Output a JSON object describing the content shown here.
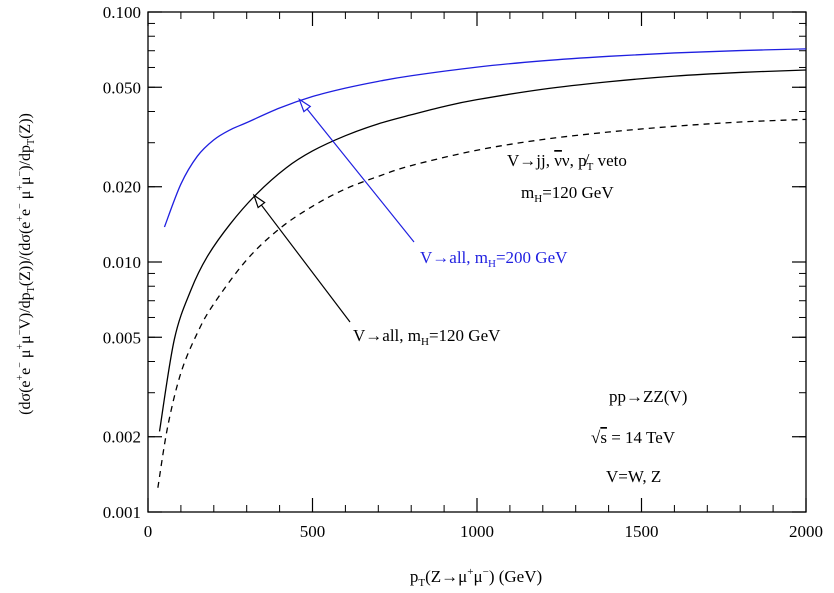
{
  "chart_data": {
    "type": "line",
    "xlabel": "p_T(Z→μ⁺μ⁻) (GeV)",
    "ylabel": "(dσ(e⁺e⁻μ⁺μ⁻V)/dp_T(Z))/(dσ(e⁺e⁻μ⁺μ⁻)/dp_T(Z))",
    "xlim": [
      0,
      2000
    ],
    "ylim": [
      0.001,
      0.1
    ],
    "yscale": "log",
    "grid": false,
    "x_ticks": [
      "0",
      "500",
      "1000",
      "1500",
      "2000"
    ],
    "y_ticks": [
      "0.001",
      "0.002",
      "0.005",
      "0.010",
      "0.020",
      "0.050",
      "0.100"
    ],
    "series": [
      {
        "name": "V→all, m_H=200 GeV",
        "color": "#1f1fe0",
        "style": "solid",
        "x": [
          50,
          100,
          150,
          200,
          250,
          300,
          400,
          500,
          600,
          700,
          800,
          1000,
          1200,
          1400,
          1600,
          1800,
          2000
        ],
        "y": [
          0.0138,
          0.0205,
          0.0265,
          0.0308,
          0.0338,
          0.0361,
          0.0413,
          0.0459,
          0.0496,
          0.0528,
          0.0556,
          0.0602,
          0.0638,
          0.0665,
          0.0686,
          0.0701,
          0.0712
        ]
      },
      {
        "name": "V→all, m_H=120 GeV",
        "color": "#000000",
        "style": "solid",
        "x": [
          35,
          80,
          130,
          180,
          250,
          330,
          420,
          500,
          600,
          700,
          800,
          900,
          1000,
          1200,
          1400,
          1600,
          1800,
          2000
        ],
        "y": [
          0.0021,
          0.0049,
          0.0077,
          0.0105,
          0.0142,
          0.0187,
          0.0238,
          0.0278,
          0.032,
          0.0357,
          0.0388,
          0.0419,
          0.0446,
          0.0491,
          0.0526,
          0.0554,
          0.0573,
          0.0586
        ]
      },
      {
        "name": "V→jj, ν̄ν, p̸_T veto",
        "color": "#000000",
        "style": "dashed",
        "x": [
          30,
          60,
          100,
          150,
          200,
          300,
          400,
          500,
          600,
          700,
          800,
          1000,
          1200,
          1400,
          1600,
          1800,
          2000
        ],
        "y": [
          0.00125,
          0.0022,
          0.0036,
          0.0052,
          0.0068,
          0.0102,
          0.0136,
          0.0167,
          0.0196,
          0.022,
          0.0243,
          0.028,
          0.0309,
          0.0331,
          0.0349,
          0.0363,
          0.0372
        ]
      }
    ],
    "annotations": {
      "veto_label": {
        "text": "V→jj, ν̄ν, p̸_T veto"
      },
      "mh120_top": {
        "text": "m_H=120 GeV"
      },
      "blue_label": {
        "text": "V→all, m_H=200 GeV",
        "color": "#1f1fe0"
      },
      "black_label": {
        "text": "V→all, m_H=120 GeV"
      },
      "process": {
        "text": "pp→ZZ(V)"
      },
      "sqrt_s": {
        "text": "√s = 14 TeV"
      },
      "vwz": {
        "text": "V=W, Z"
      }
    }
  }
}
